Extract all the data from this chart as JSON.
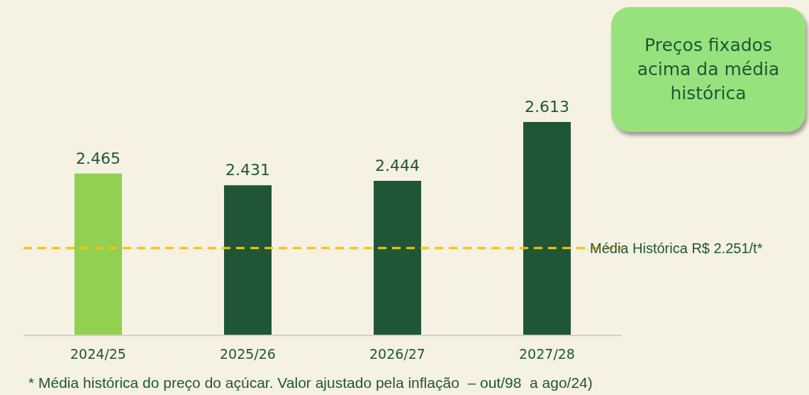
{
  "chart_data": {
    "type": "bar",
    "categories": [
      "2024/25",
      "2025/26",
      "2026/27",
      "2027/28"
    ],
    "values": [
      2465,
      2431,
      2444,
      2613
    ],
    "colors": [
      "#92d050",
      "#1f5636",
      "#1f5636",
      "#1f5636"
    ],
    "value_labels": [
      "2.465",
      "2.431",
      "2.444",
      "2.613"
    ],
    "ylim": [
      2000,
      2613
    ],
    "grid": false,
    "legend": false,
    "ref_lines": [
      {
        "axis": "y",
        "value": 2251,
        "label": "Média Histórica R$ 2.251/t*",
        "color": "#ffc000",
        "line_style": "dashed"
      }
    ],
    "annotations": [
      "Preços fixados acima da média histórica",
      "* Média histórica do preço do açúcar. Valor ajustado pela inflação  – out/98  a ago/24)"
    ]
  }
}
